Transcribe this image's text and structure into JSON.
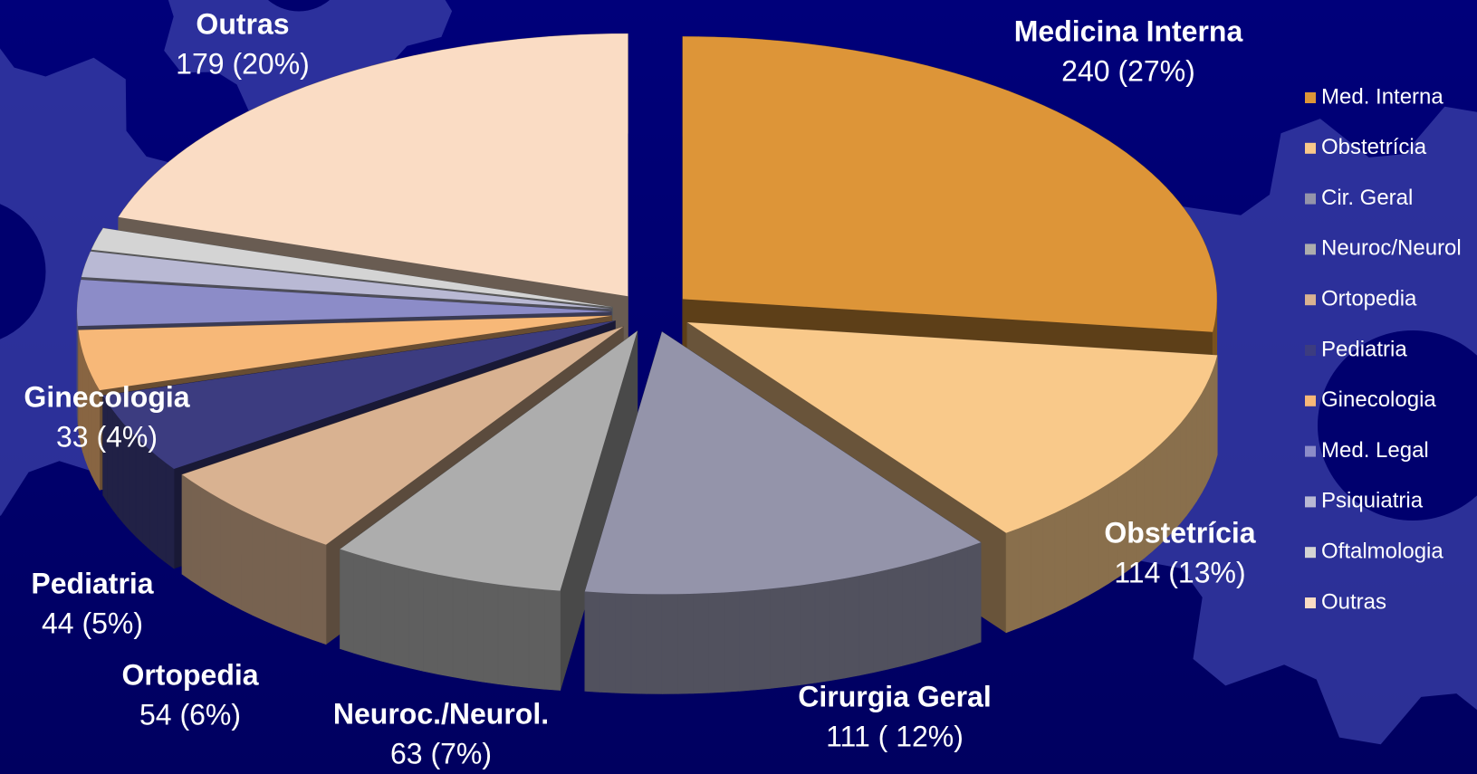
{
  "chart_data": {
    "type": "pie",
    "categories": [
      "Med. Interna",
      "Obstetrícia",
      "Cir. Geral",
      "Neuroc/Neurol",
      "Ortopedia",
      "Pediatria",
      "Ginecologia",
      "Med. Legal",
      "Psiquiatria",
      "Oftalmologia",
      "Outras"
    ],
    "values": [
      240,
      114,
      111,
      63,
      54,
      44,
      33,
      25,
      14,
      12,
      179
    ],
    "labels": [
      "Medicina Interna",
      "Obstetrícia",
      "Cirurgia Geral",
      "Neuroc./Neurol.",
      "Ortopedia",
      "Pediatria",
      "Ginecologia",
      null,
      null,
      null,
      "Outras"
    ],
    "value_labels": [
      "240 (27%)",
      "114 (13%)",
      "111 ( 12%)",
      "63 (7%)",
      "54 (6%)",
      "44 (5%)",
      "33 (4%)",
      null,
      null,
      null,
      "179 (20%)"
    ],
    "colors": [
      "#dd9538",
      "#f9c98a",
      "#9494aa",
      "#adadad",
      "#d9b291",
      "#3c3c80",
      "#f7b878",
      "#8c8cc8",
      "#b9b9d4",
      "#d4d4d4",
      "#fadcc4"
    ]
  }
}
